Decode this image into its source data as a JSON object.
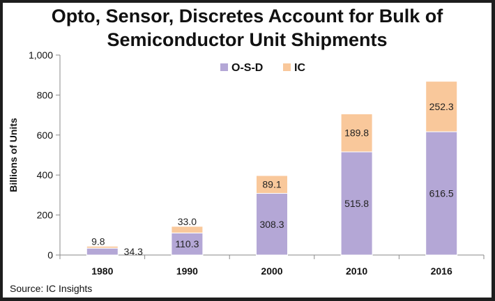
{
  "title": {
    "line1": "Opto, Sensor, Discretes Account for Bulk of",
    "line2": "Semiconductor Unit Shipments"
  },
  "source": "Source:  IC Insights",
  "chart_data": {
    "type": "bar",
    "stacked": true,
    "title": "Opto, Sensor, Discretes Account for Bulk of Semiconductor Unit Shipments",
    "categories": [
      "1980",
      "1990",
      "2000",
      "2010",
      "2016"
    ],
    "series": [
      {
        "name": "O-S-D",
        "color": "#b4a7d6",
        "values": [
          34.3,
          110.3,
          308.3,
          515.8,
          616.5
        ]
      },
      {
        "name": "IC",
        "color": "#f9c89b",
        "values": [
          9.8,
          33.0,
          89.1,
          189.8,
          252.3
        ]
      }
    ],
    "xlabel": "",
    "ylabel": "Billions of Units",
    "ylim": [
      0,
      1000
    ],
    "yticks": [
      0,
      200,
      400,
      600,
      800,
      1000
    ],
    "ytick_labels": [
      "0",
      "200",
      "400",
      "600",
      "800",
      "1,000"
    ],
    "data_labels": [
      [
        "34.3",
        "110.3",
        "308.3",
        "515.8",
        "616.5"
      ],
      [
        "9.8",
        "33.0",
        "89.1",
        "189.8",
        "252.3"
      ]
    ],
    "legend_position": "top",
    "grid": false
  }
}
